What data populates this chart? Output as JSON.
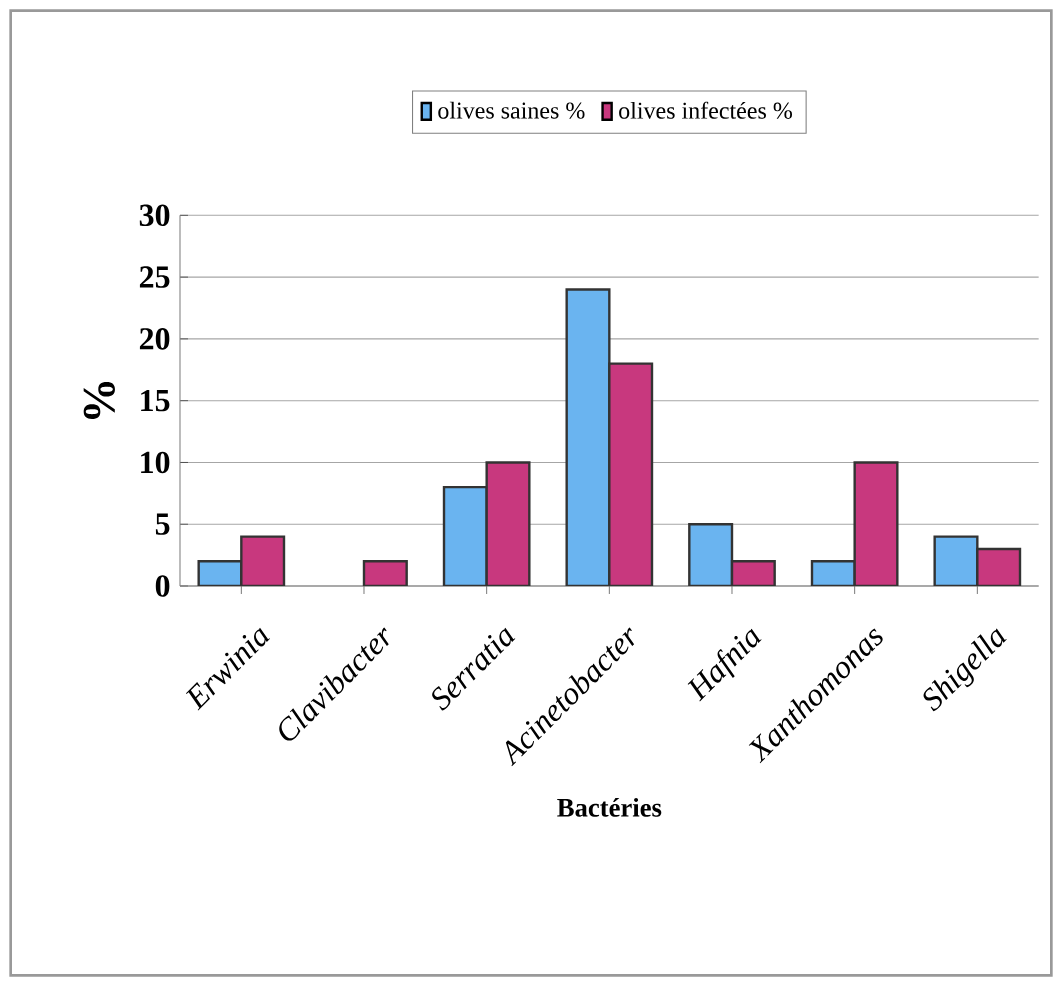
{
  "chart_data": {
    "type": "bar",
    "xlabel": "Bactéries",
    "ylabel": "%",
    "categories": [
      "Erwinia",
      "Clavibacter",
      "Serratia",
      "Acinetobacter",
      "Hafnia",
      "Xanthomonas",
      "Shigella"
    ],
    "series": [
      {
        "name": "olives saines %",
        "color": "#6ab4f0",
        "values": [
          2,
          null,
          8,
          24,
          5,
          2,
          4
        ]
      },
      {
        "name": "olives infectées %",
        "color": "#c8387e",
        "values": [
          4,
          2,
          10,
          18,
          2,
          10,
          3
        ]
      }
    ],
    "ylim": [
      0,
      30
    ],
    "yticks": [
      0,
      5,
      10,
      15,
      20,
      25,
      30
    ],
    "grid": "y",
    "legend": "top"
  }
}
